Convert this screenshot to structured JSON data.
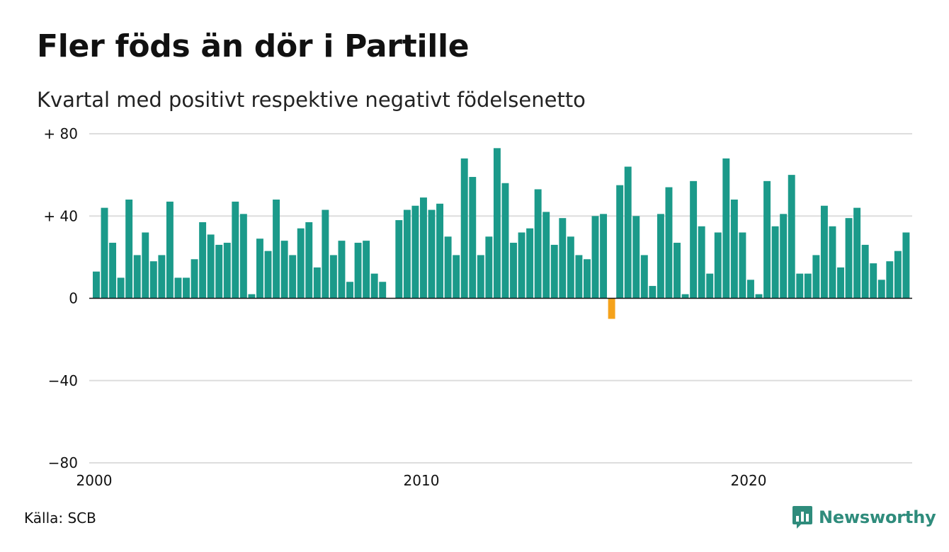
{
  "header": {
    "title": "Fler föds än dör i Partille",
    "subtitle": "Kvartal med positivt respektive negativt födelsenetto"
  },
  "footer": {
    "source": "Källa: SCB",
    "brand": "Newsworthy"
  },
  "colors": {
    "positive": "#1b9a8a",
    "negative": "#f5a21b",
    "grid": "#dddddd",
    "baseline": "#111111",
    "brand": "#2f8c7c"
  },
  "icons": {
    "brand_logo": "bar-chart-speech-bubble-icon"
  },
  "chart_data": {
    "type": "bar",
    "title": "Fler föds än dör i Partille",
    "subtitle": "Kvartal med positivt respektive negativt födelsenetto",
    "xlabel": "",
    "ylabel": "",
    "ylim": [
      -80,
      80
    ],
    "yticks": [
      80,
      40,
      0,
      -40,
      -80
    ],
    "ytick_labels": [
      "+ 80",
      "+ 40",
      "0",
      "−40",
      "−80"
    ],
    "xticks": [
      2000,
      2010,
      2020
    ],
    "xtick_labels": [
      "2000",
      "2010",
      "2020"
    ],
    "x_start": "2000 Q1",
    "x_end": "2024 Q4",
    "grid": true,
    "legend": "none",
    "categories": [
      "2000 Q1",
      "2000 Q2",
      "2000 Q3",
      "2000 Q4",
      "2001 Q1",
      "2001 Q2",
      "2001 Q3",
      "2001 Q4",
      "2002 Q1",
      "2002 Q2",
      "2002 Q3",
      "2002 Q4",
      "2003 Q1",
      "2003 Q2",
      "2003 Q3",
      "2003 Q4",
      "2004 Q1",
      "2004 Q2",
      "2004 Q3",
      "2004 Q4",
      "2005 Q1",
      "2005 Q2",
      "2005 Q3",
      "2005 Q4",
      "2006 Q1",
      "2006 Q2",
      "2006 Q3",
      "2006 Q4",
      "2007 Q1",
      "2007 Q2",
      "2007 Q3",
      "2007 Q4",
      "2008 Q1",
      "2008 Q2",
      "2008 Q3",
      "2008 Q4",
      "2009 Q1",
      "2009 Q2",
      "2009 Q3",
      "2009 Q4",
      "2010 Q1",
      "2010 Q2",
      "2010 Q3",
      "2010 Q4",
      "2011 Q1",
      "2011 Q2",
      "2011 Q3",
      "2011 Q4",
      "2012 Q1",
      "2012 Q2",
      "2012 Q3",
      "2012 Q4",
      "2013 Q1",
      "2013 Q2",
      "2013 Q3",
      "2013 Q4",
      "2014 Q1",
      "2014 Q2",
      "2014 Q3",
      "2014 Q4",
      "2015 Q1",
      "2015 Q2",
      "2015 Q3",
      "2015 Q4",
      "2016 Q1",
      "2016 Q2",
      "2016 Q3",
      "2016 Q4",
      "2017 Q1",
      "2017 Q2",
      "2017 Q3",
      "2017 Q4",
      "2018 Q1",
      "2018 Q2",
      "2018 Q3",
      "2018 Q4",
      "2019 Q1",
      "2019 Q2",
      "2019 Q3",
      "2019 Q4",
      "2020 Q1",
      "2020 Q2",
      "2020 Q3",
      "2020 Q4",
      "2021 Q1",
      "2021 Q2",
      "2021 Q3",
      "2021 Q4",
      "2022 Q1",
      "2022 Q2",
      "2022 Q3",
      "2022 Q4",
      "2023 Q1",
      "2023 Q2",
      "2023 Q3",
      "2023 Q4",
      "2024 Q1",
      "2024 Q2",
      "2024 Q3",
      "2024 Q4"
    ],
    "values": [
      13,
      44,
      27,
      10,
      48,
      21,
      32,
      18,
      21,
      47,
      10,
      10,
      19,
      37,
      31,
      26,
      27,
      47,
      41,
      2,
      29,
      23,
      48,
      28,
      21,
      34,
      37,
      15,
      43,
      21,
      28,
      8,
      27,
      28,
      12,
      8,
      0,
      38,
      43,
      45,
      49,
      43,
      46,
      30,
      21,
      68,
      59,
      21,
      30,
      73,
      56,
      27,
      32,
      34,
      53,
      42,
      26,
      39,
      30,
      21,
      19,
      40,
      41,
      -10,
      55,
      64,
      40,
      21,
      6,
      41,
      54,
      27,
      2,
      57,
      35,
      12,
      32,
      68,
      48,
      32,
      9,
      2,
      57,
      35,
      41,
      60,
      12,
      12,
      21,
      45,
      35,
      15,
      39,
      44,
      26,
      17,
      9,
      18,
      23,
      32
    ]
  }
}
